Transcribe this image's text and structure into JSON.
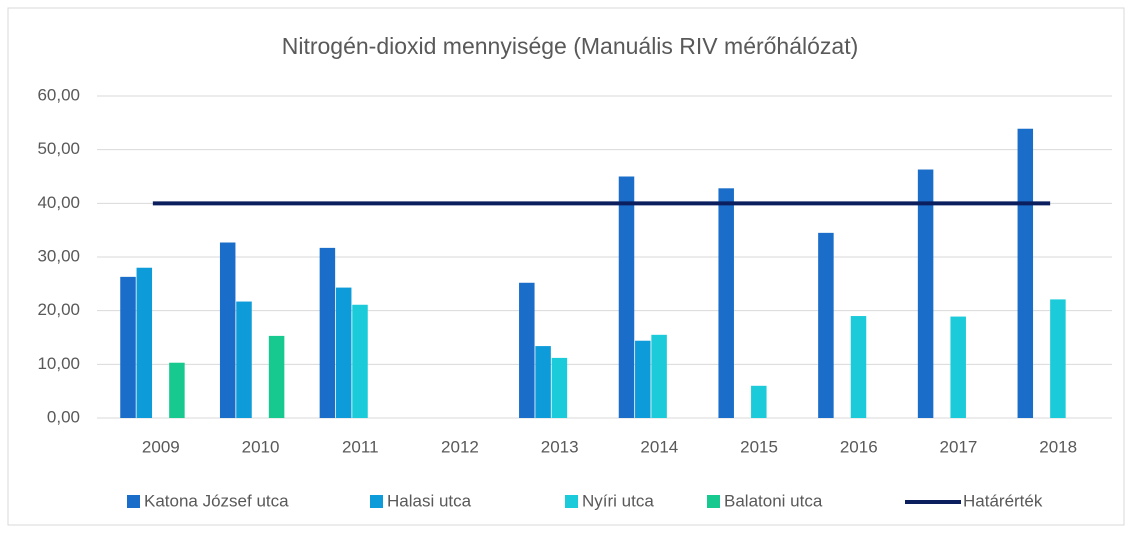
{
  "chart_data": {
    "type": "bar",
    "title": "Nitrogén-dioxid mennyisége (Manuális RIV mérőhálózat)",
    "categories": [
      "2009",
      "2010",
      "2011",
      "2012",
      "2013",
      "2014",
      "2015",
      "2016",
      "2017",
      "2018"
    ],
    "series": [
      {
        "name": "Katona József utca",
        "color": "#1a6dc8",
        "values": [
          26.3,
          32.7,
          31.7,
          null,
          25.2,
          45.0,
          42.8,
          34.5,
          46.3,
          53.9
        ]
      },
      {
        "name": "Halasi utca",
        "color": "#0d9bd9",
        "values": [
          28.0,
          21.7,
          24.3,
          null,
          13.4,
          14.4,
          null,
          null,
          null,
          null
        ]
      },
      {
        "name": "Nyíri utca",
        "color": "#1ccbd9",
        "values": [
          null,
          null,
          21.1,
          null,
          11.2,
          15.5,
          6.0,
          19.0,
          18.9,
          22.1
        ]
      },
      {
        "name": "Balatoni utca",
        "color": "#17c98f",
        "values": [
          10.3,
          15.3,
          null,
          null,
          null,
          null,
          null,
          null,
          null,
          null
        ]
      },
      {
        "name": "Határérték",
        "type": "line",
        "color": "#0b1f5e",
        "values": [
          40,
          40,
          40,
          40,
          40,
          40,
          40,
          40,
          40,
          40
        ]
      }
    ],
    "ylim": [
      0,
      60
    ],
    "yticks": [
      {
        "value": 0,
        "label": "0,00"
      },
      {
        "value": 10,
        "label": "10,00"
      },
      {
        "value": 20,
        "label": "20,00"
      },
      {
        "value": 30,
        "label": "30,00"
      },
      {
        "value": 40,
        "label": "40,00"
      },
      {
        "value": 50,
        "label": "50,00"
      },
      {
        "value": 60,
        "label": "60,00"
      }
    ],
    "grid": true,
    "legend": "bottom"
  }
}
